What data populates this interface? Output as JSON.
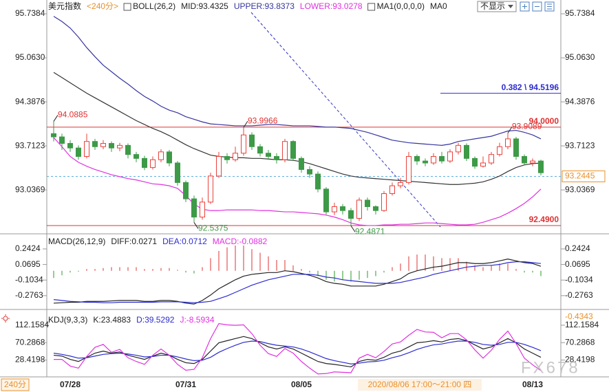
{
  "toolbar": {
    "dropdown": "不显示",
    "period_button": "240分"
  },
  "crosshair": {
    "time_label": "2020/08/06 17:00～21:00 四",
    "value_label": -0.4343
  },
  "watermark": "FX678",
  "chart_data": [
    {
      "type": "candlestick",
      "title": "美元指数",
      "period": "<240分>",
      "indicator": "BOLL(26,2)",
      "extra_indicator": "MA1(0,0,0,0)",
      "extra_series_label": "MA0",
      "categories": [
        null,
        null,
        "07/28",
        null,
        null,
        null,
        null,
        null,
        null,
        null,
        null,
        null,
        null,
        null,
        null,
        null,
        "07/31",
        null,
        null,
        null,
        null,
        null,
        null,
        null,
        null,
        null,
        null,
        null,
        null,
        null,
        "08/05",
        null,
        null,
        null,
        null,
        null,
        null,
        null,
        null,
        null,
        null,
        null,
        null,
        null,
        null,
        null,
        null,
        null,
        null,
        null,
        null,
        null,
        null,
        null,
        null,
        null,
        null,
        null,
        "08/13",
        null
      ],
      "open": [
        93.9,
        93.85,
        93.75,
        93.68,
        93.55,
        93.78,
        93.7,
        93.75,
        93.68,
        93.72,
        93.58,
        93.52,
        93.38,
        93.5,
        93.62,
        93.45,
        93.15,
        92.9,
        92.62,
        92.85,
        93.25,
        93.55,
        93.5,
        93.6,
        93.88,
        93.7,
        93.6,
        93.55,
        93.5,
        93.78,
        93.52,
        93.35,
        93.28,
        93.05,
        92.7,
        92.78,
        92.72,
        92.6,
        92.88,
        92.78,
        92.72,
        92.98,
        93.1,
        93.15,
        93.55,
        93.48,
        93.45,
        93.55,
        93.48,
        93.62,
        93.72,
        93.52,
        93.4,
        93.45,
        93.58,
        93.7,
        93.82,
        93.55,
        93.45,
        93.48
      ],
      "high": [
        94.0885,
        93.9,
        93.8,
        93.72,
        93.9,
        93.82,
        93.8,
        93.78,
        93.76,
        93.75,
        93.62,
        93.56,
        93.55,
        93.66,
        93.65,
        93.48,
        93.18,
        92.95,
        92.92,
        93.3,
        93.62,
        93.6,
        93.7,
        93.9966,
        93.92,
        93.74,
        93.65,
        93.6,
        93.82,
        93.8,
        93.55,
        93.4,
        93.32,
        93.08,
        92.84,
        92.82,
        92.76,
        92.92,
        92.92,
        92.8,
        93.02,
        93.15,
        93.22,
        93.62,
        93.58,
        93.52,
        93.6,
        93.62,
        93.66,
        93.76,
        93.75,
        93.55,
        93.55,
        93.62,
        93.76,
        93.9089,
        93.85,
        93.58,
        93.52,
        93.5
      ],
      "low": [
        93.78,
        93.65,
        93.62,
        93.5,
        93.52,
        93.65,
        93.66,
        93.62,
        93.63,
        93.52,
        93.46,
        93.34,
        93.35,
        93.46,
        93.4,
        93.1,
        92.85,
        92.5375,
        92.58,
        92.82,
        93.22,
        93.44,
        93.47,
        93.56,
        93.65,
        93.55,
        93.5,
        93.44,
        93.46,
        93.48,
        93.3,
        93.22,
        93.0,
        92.66,
        92.65,
        92.66,
        92.4871,
        92.56,
        92.72,
        92.66,
        92.7,
        92.95,
        93.06,
        93.12,
        93.42,
        93.4,
        93.42,
        93.44,
        93.45,
        93.58,
        93.48,
        93.36,
        93.38,
        93.42,
        93.55,
        93.66,
        93.5,
        93.42,
        93.4,
        93.26
      ],
      "close": [
        93.85,
        93.75,
        93.68,
        93.55,
        93.78,
        93.7,
        93.75,
        93.68,
        93.72,
        93.58,
        93.52,
        93.38,
        93.5,
        93.62,
        93.45,
        93.15,
        92.9,
        92.62,
        92.85,
        93.25,
        93.55,
        93.5,
        93.6,
        93.88,
        93.7,
        93.6,
        93.55,
        93.5,
        93.78,
        93.52,
        93.35,
        93.28,
        93.05,
        92.7,
        92.78,
        92.72,
        92.6,
        92.88,
        92.78,
        92.72,
        92.98,
        93.1,
        93.15,
        93.55,
        93.48,
        93.45,
        93.55,
        93.48,
        93.62,
        93.72,
        93.52,
        93.4,
        93.45,
        93.58,
        93.7,
        93.82,
        93.55,
        93.45,
        93.48,
        93.3
      ],
      "up_color": "#e8403a",
      "down_color": "#3d9a47",
      "series": [
        {
          "name": "MID:93.4325",
          "color": "#333333",
          "values": [
            94.84,
            94.76,
            94.68,
            94.6,
            94.52,
            94.45,
            94.38,
            94.31,
            94.24,
            94.17,
            94.1,
            94.04,
            93.98,
            93.93,
            93.87,
            93.8,
            93.73,
            93.67,
            93.62,
            93.57,
            93.55,
            93.54,
            93.53,
            93.53,
            93.52,
            93.52,
            93.51,
            93.5,
            93.5,
            93.49,
            93.47,
            93.44,
            93.4,
            93.36,
            93.32,
            93.28,
            93.25,
            93.23,
            93.22,
            93.21,
            93.2,
            93.19,
            93.18,
            93.17,
            93.16,
            93.15,
            93.14,
            93.13,
            93.12,
            93.12,
            93.13,
            93.14,
            93.16,
            93.2,
            93.25,
            93.32,
            93.38,
            93.42,
            93.44,
            93.45
          ]
        },
        {
          "name": "UPPER:93.8373",
          "color": "#3434a0",
          "values": [
            95.7,
            95.62,
            95.52,
            95.38,
            95.22,
            95.08,
            94.95,
            94.85,
            94.75,
            94.66,
            94.56,
            94.47,
            94.4,
            94.32,
            94.26,
            94.22,
            94.16,
            94.12,
            94.08,
            94.05,
            94.04,
            94.03,
            94.02,
            94.02,
            94.02,
            94.03,
            94.04,
            94.04,
            94.03,
            94.02,
            94.02,
            94.02,
            94.01,
            94.0,
            94.0,
            93.99,
            93.98,
            93.95,
            93.92,
            93.88,
            93.84,
            93.8,
            93.78,
            93.76,
            93.75,
            93.74,
            93.73,
            93.72,
            93.74,
            93.78,
            93.8,
            93.82,
            93.84,
            93.86,
            93.9,
            93.94,
            93.95,
            93.92,
            93.88,
            93.82
          ]
        },
        {
          "name": "LOWER:93.0278",
          "color": "#e030e0",
          "values": [
            93.84,
            93.7,
            93.55,
            93.46,
            93.4,
            93.35,
            93.31,
            93.27,
            93.24,
            93.21,
            93.19,
            93.16,
            93.13,
            93.12,
            93.1,
            93.06,
            92.95,
            92.82,
            92.74,
            92.72,
            92.72,
            92.73,
            92.73,
            92.73,
            92.73,
            92.72,
            92.72,
            92.71,
            92.7,
            92.7,
            92.69,
            92.68,
            92.67,
            92.65,
            92.62,
            92.58,
            92.53,
            92.5,
            92.49,
            92.49,
            92.5,
            92.5,
            92.51,
            92.51,
            92.52,
            92.53,
            92.53,
            92.52,
            92.51,
            92.5,
            92.5,
            92.51,
            92.54,
            92.58,
            92.62,
            92.68,
            92.75,
            92.83,
            92.93,
            93.05
          ]
        }
      ],
      "ylim": [
        92.363,
        95.95
      ],
      "yticks": [
        95.7384,
        {
          "value": 95.063,
          "label": "95.0630"
        },
        94.3876,
        93.7123,
        93.0369
      ],
      "hlines": [
        {
          "value": 94,
          "label": "94.0000",
          "color": "#e03030"
        },
        {
          "value": 92.49,
          "label": "92.4900",
          "color": "#e03030"
        }
      ],
      "fib_line": {
        "value": 94.5196,
        "label": "0.382 \\ 94.5196",
        "color": "#2b2bd0"
      },
      "current_price": {
        "value": 93.2445,
        "color": "#e8902a"
      },
      "price_labels": [
        {
          "value": 94.0885,
          "color": "#e03030"
        },
        {
          "value": 92.5375,
          "color": "#3d9a47"
        },
        {
          "value": 93.9966,
          "color": "#e03030"
        },
        {
          "value": 92.4871,
          "color": "#3d9a47"
        },
        {
          "value": 93.9089,
          "color": "#e03030"
        }
      ]
    },
    {
      "type": "macd",
      "title": "MACD(26,12,9)",
      "series": [
        {
          "name": "DIFF:0.0271",
          "color": "#222222",
          "values": [
            -0.36,
            -0.355,
            -0.35,
            -0.35,
            -0.34,
            -0.34,
            -0.34,
            -0.335,
            -0.33,
            -0.33,
            -0.33,
            -0.34,
            -0.34,
            -0.33,
            -0.33,
            -0.34,
            -0.36,
            -0.37,
            -0.33,
            -0.27,
            -0.2,
            -0.15,
            -0.1,
            -0.06,
            -0.04,
            -0.03,
            -0.02,
            -0.02,
            0.0,
            -0.01,
            -0.03,
            -0.05,
            -0.08,
            -0.12,
            -0.14,
            -0.15,
            -0.17,
            -0.17,
            -0.17,
            -0.17,
            -0.15,
            -0.12,
            -0.09,
            -0.03,
            0.0,
            0.02,
            0.04,
            0.05,
            0.07,
            0.09,
            0.09,
            0.08,
            0.08,
            0.09,
            0.11,
            0.13,
            0.11,
            0.09,
            0.08,
            0.05
          ]
        },
        {
          "name": "DEA:0.0712",
          "color": "#2b2bd0",
          "values": [
            -0.32,
            -0.33,
            -0.34,
            -0.345,
            -0.35,
            -0.35,
            -0.355,
            -0.355,
            -0.35,
            -0.35,
            -0.35,
            -0.35,
            -0.35,
            -0.345,
            -0.345,
            -0.345,
            -0.35,
            -0.355,
            -0.35,
            -0.34,
            -0.31,
            -0.28,
            -0.24,
            -0.2,
            -0.16,
            -0.13,
            -0.1,
            -0.08,
            -0.06,
            -0.04,
            -0.04,
            -0.04,
            -0.05,
            -0.07,
            -0.08,
            -0.1,
            -0.11,
            -0.12,
            -0.13,
            -0.14,
            -0.14,
            -0.14,
            -0.13,
            -0.11,
            -0.09,
            -0.07,
            -0.04,
            -0.02,
            0.0,
            0.02,
            0.04,
            0.05,
            0.06,
            0.06,
            0.07,
            0.09,
            0.1,
            0.1,
            0.09,
            0.08
          ]
        }
      ],
      "bars": {
        "name": "MACD:-0.0882",
        "name_color": "#e030e0",
        "up_color": "#e03030",
        "down_color": "#2a9a2a",
        "values": [
          -0.08,
          -0.05,
          -0.02,
          -0.01,
          0.02,
          0.02,
          0.03,
          0.04,
          0.04,
          0.04,
          0.04,
          0.02,
          0.02,
          0.03,
          0.03,
          0.01,
          -0.02,
          -0.03,
          0.04,
          0.14,
          0.22,
          0.26,
          0.28,
          0.28,
          0.24,
          0.2,
          0.16,
          0.12,
          0.12,
          0.06,
          0.02,
          -0.02,
          -0.06,
          -0.1,
          -0.12,
          -0.1,
          -0.12,
          -0.1,
          -0.08,
          -0.06,
          -0.02,
          0.04,
          0.08,
          0.16,
          0.18,
          0.18,
          0.16,
          0.14,
          0.14,
          0.14,
          0.1,
          0.06,
          0.04,
          0.06,
          0.08,
          0.08,
          0.02,
          -0.02,
          -0.02,
          -0.06
        ]
      },
      "ylim": [
        -0.43,
        0.41
      ],
      "yticks": [
        0.2424,
        0.0695,
        -0.1034,
        -0.2763
      ]
    },
    {
      "type": "kdj",
      "title": "KDJ(9,3,3)",
      "series": [
        {
          "name": "K:23.4883",
          "color": "#222222",
          "values": [
            40,
            38,
            30,
            25,
            35,
            45,
            50,
            45,
            48,
            40,
            35,
            30,
            38,
            45,
            40,
            30,
            22,
            20,
            30,
            50,
            70,
            75,
            80,
            85,
            80,
            70,
            60,
            55,
            60,
            55,
            45,
            35,
            25,
            20,
            18,
            15,
            12,
            25,
            30,
            28,
            35,
            45,
            50,
            60,
            70,
            72,
            75,
            72,
            78,
            80,
            75,
            65,
            55,
            60,
            70,
            80,
            70,
            55,
            45,
            35
          ]
        },
        {
          "name": "D:39.5292",
          "color": "#2b2bd0",
          "values": [
            45,
            42,
            38,
            33,
            34,
            38,
            42,
            44,
            45,
            43,
            40,
            36,
            37,
            40,
            40,
            36,
            31,
            27,
            28,
            35,
            47,
            56,
            64,
            71,
            74,
            73,
            68,
            64,
            62,
            60,
            55,
            48,
            40,
            32,
            27,
            23,
            19,
            21,
            24,
            25,
            28,
            34,
            39,
            46,
            54,
            60,
            65,
            67,
            71,
            74,
            74,
            71,
            66,
            64,
            66,
            71,
            71,
            66,
            59,
            51
          ]
        },
        {
          "name": "J:-8.5934",
          "color": "#e030e0",
          "values": [
            30,
            30,
            14,
            9,
            37,
            59,
            66,
            47,
            54,
            34,
            25,
            18,
            40,
            55,
            40,
            18,
            4,
            6,
            34,
            80,
            116,
            113,
            112,
            113,
            92,
            64,
            44,
            37,
            56,
            45,
            25,
            9,
            -5,
            -4,
            0,
            -1,
            -2,
            33,
            42,
            34,
            49,
            67,
            72,
            88,
            102,
            96,
            95,
            82,
            92,
            92,
            77,
            53,
            33,
            52,
            78,
            98,
            68,
            33,
            17,
            3
          ]
        }
      ],
      "ylim": [
        -12,
        150
      ],
      "yticks": [
        112.1584,
        70.2868,
        28.4198
      ]
    }
  ]
}
